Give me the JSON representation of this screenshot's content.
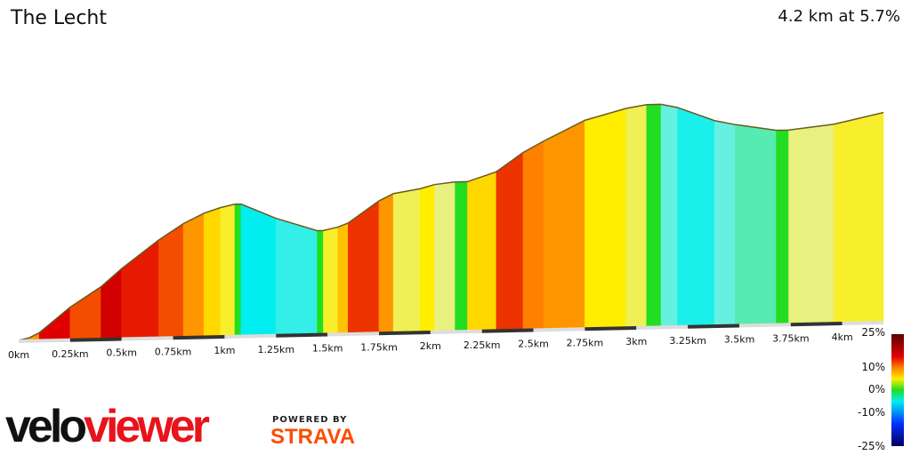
{
  "header": {
    "title": "The Lecht",
    "summary": "4.2 km at 5.7%"
  },
  "chart_data": {
    "type": "area",
    "title": "The Lecht",
    "x_ticks": [
      "0km",
      "0.25km",
      "0.5km",
      "0.75km",
      "1km",
      "1.25km",
      "1.5km",
      "1.75km",
      "2km",
      "2.25km",
      "2.5km",
      "2.75km",
      "3km",
      "3.25km",
      "3.5km",
      "3.75km",
      "4km"
    ],
    "xlim": [
      0,
      4.2
    ],
    "segments_end_km_gradient_pct": [
      [
        0.05,
        4
      ],
      [
        0.1,
        9
      ],
      [
        0.25,
        15
      ],
      [
        0.4,
        12
      ],
      [
        0.5,
        16
      ],
      [
        0.68,
        14
      ],
      [
        0.8,
        12
      ],
      [
        0.9,
        9
      ],
      [
        0.98,
        6
      ],
      [
        1.05,
        4
      ],
      [
        1.08,
        0
      ],
      [
        1.25,
        -8
      ],
      [
        1.45,
        -6
      ],
      [
        1.48,
        0
      ],
      [
        1.55,
        4
      ],
      [
        1.6,
        7
      ],
      [
        1.75,
        13
      ],
      [
        1.82,
        9
      ],
      [
        1.95,
        3
      ],
      [
        2.02,
        5
      ],
      [
        2.12,
        2
      ],
      [
        2.18,
        0
      ],
      [
        2.32,
        6
      ],
      [
        2.45,
        13
      ],
      [
        2.55,
        10
      ],
      [
        2.75,
        9
      ],
      [
        2.95,
        5
      ],
      [
        3.05,
        3
      ],
      [
        3.12,
        0
      ],
      [
        3.2,
        -4
      ],
      [
        3.38,
        -7
      ],
      [
        3.48,
        -4
      ],
      [
        3.68,
        -3
      ],
      [
        3.74,
        0
      ],
      [
        3.96,
        2
      ],
      [
        4.2,
        4
      ]
    ],
    "color_scale": {
      "ticks": [
        "25%",
        "10%",
        "0%",
        "-10%",
        "-25%"
      ],
      "stops": [
        [
          25,
          "#5a0000"
        ],
        [
          15,
          "#e00000"
        ],
        [
          10,
          "#ff8000"
        ],
        [
          5,
          "#ffee00"
        ],
        [
          2,
          "#e8f080"
        ],
        [
          0,
          "#22dd22"
        ],
        [
          -4,
          "#66f0e0"
        ],
        [
          -8,
          "#00eef0"
        ],
        [
          -15,
          "#0040ff"
        ],
        [
          -25,
          "#000060"
        ]
      ]
    }
  },
  "branding": {
    "velo": "velo",
    "viewer": "viewer",
    "powered_by": "POWERED BY",
    "strava": "STRAVA"
  }
}
